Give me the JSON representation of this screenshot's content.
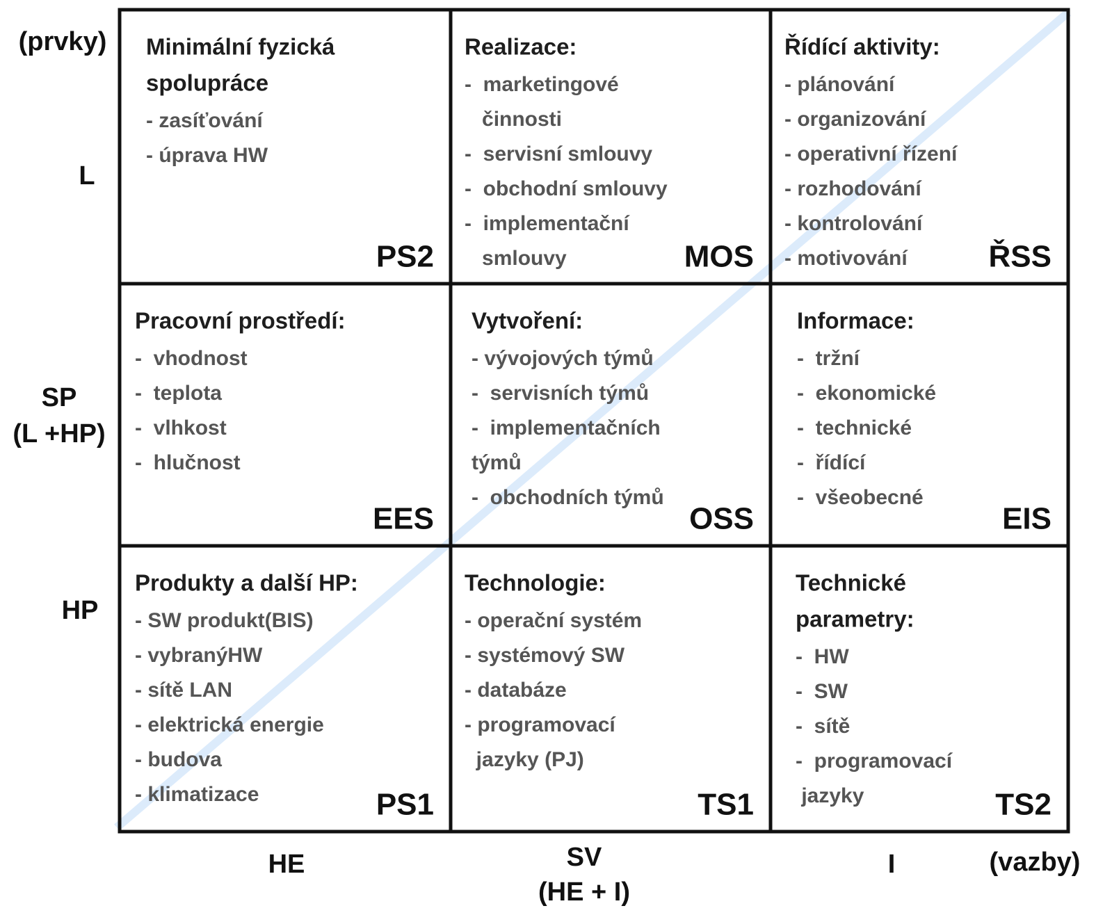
{
  "axis_rows": "(prvky)",
  "axis_columns": "(vazby)",
  "row_labels": [
    [
      "L"
    ],
    [
      "SP",
      "(L +HP)"
    ],
    [
      "HP"
    ]
  ],
  "column_labels": [
    [
      "HE"
    ],
    [
      "SV",
      "(HE + I)"
    ],
    [
      "I"
    ]
  ],
  "cells": [
    [
      {
        "title": [
          "Minimální fyzická",
          "spolupráce"
        ],
        "lines": [
          "- zasíťování",
          "- úprava HW"
        ],
        "code": "PS2"
      },
      {
        "title": [
          "Realizace:"
        ],
        "lines": [
          "-  marketingové",
          "   činnosti",
          "-  servisní smlouvy",
          "-  obchodní smlouvy",
          "-  implementační",
          "   smlouvy"
        ],
        "code": "MOS"
      },
      {
        "title": [
          "Řídící aktivity:"
        ],
        "lines": [
          "- plánování",
          "- organizování",
          "- operativní řízení",
          "- rozhodování",
          "- kontrolování",
          "- motivování"
        ],
        "code": "ŘSS"
      }
    ],
    [
      {
        "title": [
          "Pracovní prostředí:"
        ],
        "lines": [
          "-  vhodnost",
          "-  teplota",
          "-  vlhkost",
          "-  hlučnost"
        ],
        "code": "EES"
      },
      {
        "title": [
          "Vytvoření:"
        ],
        "lines": [
          "- vývojových týmů",
          "-  servisních týmů",
          "-  implementačních",
          "týmů",
          "-  obchodních týmů"
        ],
        "code": "OSS"
      },
      {
        "title": [
          "Informace:"
        ],
        "lines": [
          "-  tržní",
          "-  ekonomické",
          "-  technické",
          "-  řídící",
          "-  všeobecné"
        ],
        "code": "EIS"
      }
    ],
    [
      {
        "title": [
          "Produkty a další HP:"
        ],
        "lines": [
          "- SW produkt(BIS)",
          "- vybranýHW",
          "- sítě LAN",
          "- elektrická energie",
          "- budova",
          "- klimatizace"
        ],
        "code": "PS1"
      },
      {
        "title": [
          "Technologie:"
        ],
        "lines": [
          "- operační systém",
          "- systémový SW",
          "- databáze",
          "- programovací",
          "  jazyky (PJ)"
        ],
        "code": "TS1"
      },
      {
        "title": [
          "Technické",
          "parametry:"
        ],
        "lines": [
          "-  HW",
          "-  SW",
          "-  sítě",
          "-  programovací",
          " jazyky"
        ],
        "code": "TS2"
      }
    ]
  ]
}
